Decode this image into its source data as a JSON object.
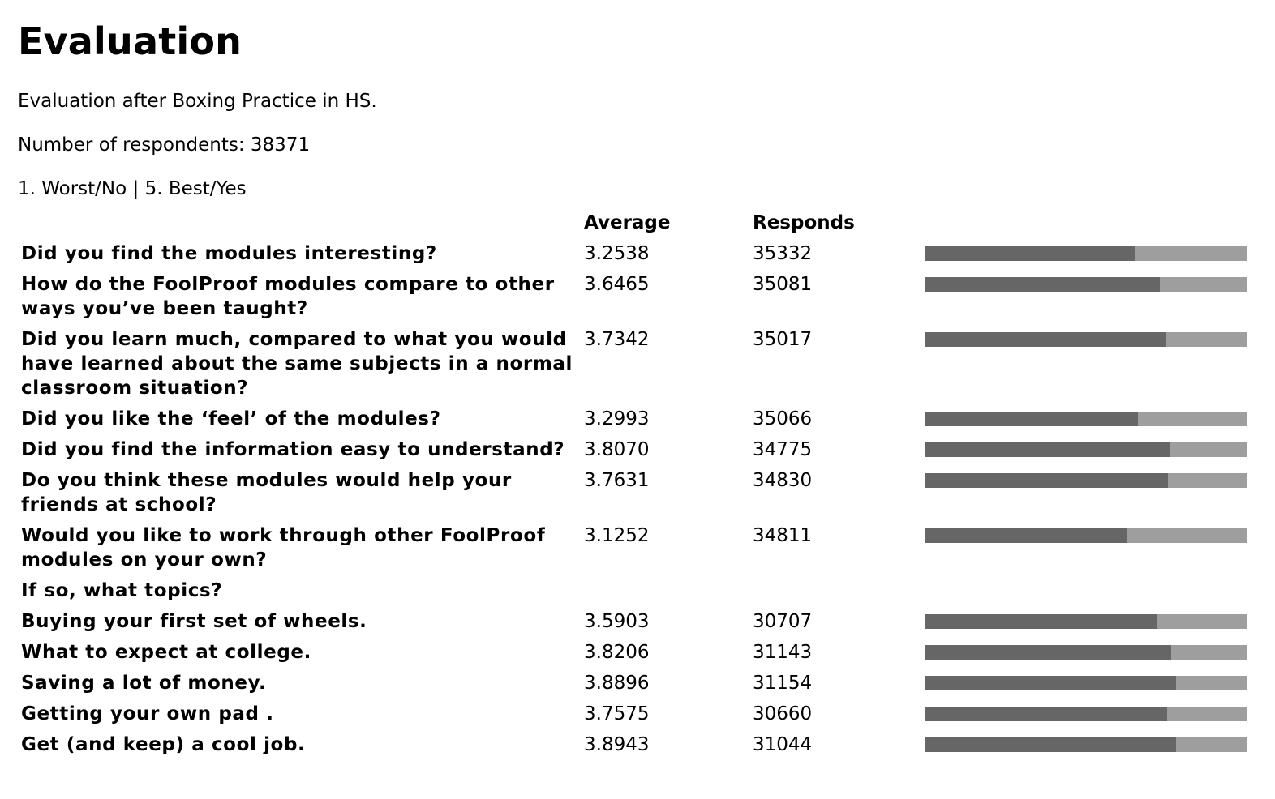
{
  "title": "Evaluation",
  "description": "Evaluation after Boxing Practice in HS.",
  "respondents": "Number of respondents: 38371",
  "scale_legend": "1. Worst/No | 5. Best/Yes",
  "columns": {
    "average": "Average",
    "responds": "Responds"
  },
  "scale_max": 5,
  "colors": {
    "bar_fill": "#666666",
    "bar_track": "#9e9e9e"
  },
  "rows": [
    {
      "question": "Did you find the modules interesting?",
      "average": "3.2538",
      "responds": "35332"
    },
    {
      "question": "How do the FoolProof modules compare to other ways you’ve been taught?",
      "average": "3.6465",
      "responds": "35081"
    },
    {
      "question": "Did you learn much, compared to what you would have learned about the same subjects in a normal classroom situation?",
      "average": "3.7342",
      "responds": "35017"
    },
    {
      "question": "Did you like the ‘feel’ of the modules?",
      "average": "3.2993",
      "responds": "35066"
    },
    {
      "question": "Did you find the information easy to understand?",
      "average": "3.8070",
      "responds": "34775"
    },
    {
      "question": "Do you think these modules would help your friends at school?",
      "average": "3.7631",
      "responds": "34830"
    },
    {
      "question": "Would you like to work through other FoolProof modules on your own?",
      "average": "3.1252",
      "responds": "34811"
    },
    {
      "question": "If so, what topics?",
      "average": "",
      "responds": ""
    },
    {
      "question": "Buying your first set of wheels.",
      "average": "3.5903",
      "responds": "30707"
    },
    {
      "question": "What to expect at college.",
      "average": "3.8206",
      "responds": "31143"
    },
    {
      "question": "Saving a lot of money.",
      "average": "3.8896",
      "responds": "31154"
    },
    {
      "question": "Getting your own pad .",
      "average": "3.7575",
      "responds": "30660"
    },
    {
      "question": "Get (and keep) a cool job.",
      "average": "3.8943",
      "responds": "31044"
    }
  ]
}
